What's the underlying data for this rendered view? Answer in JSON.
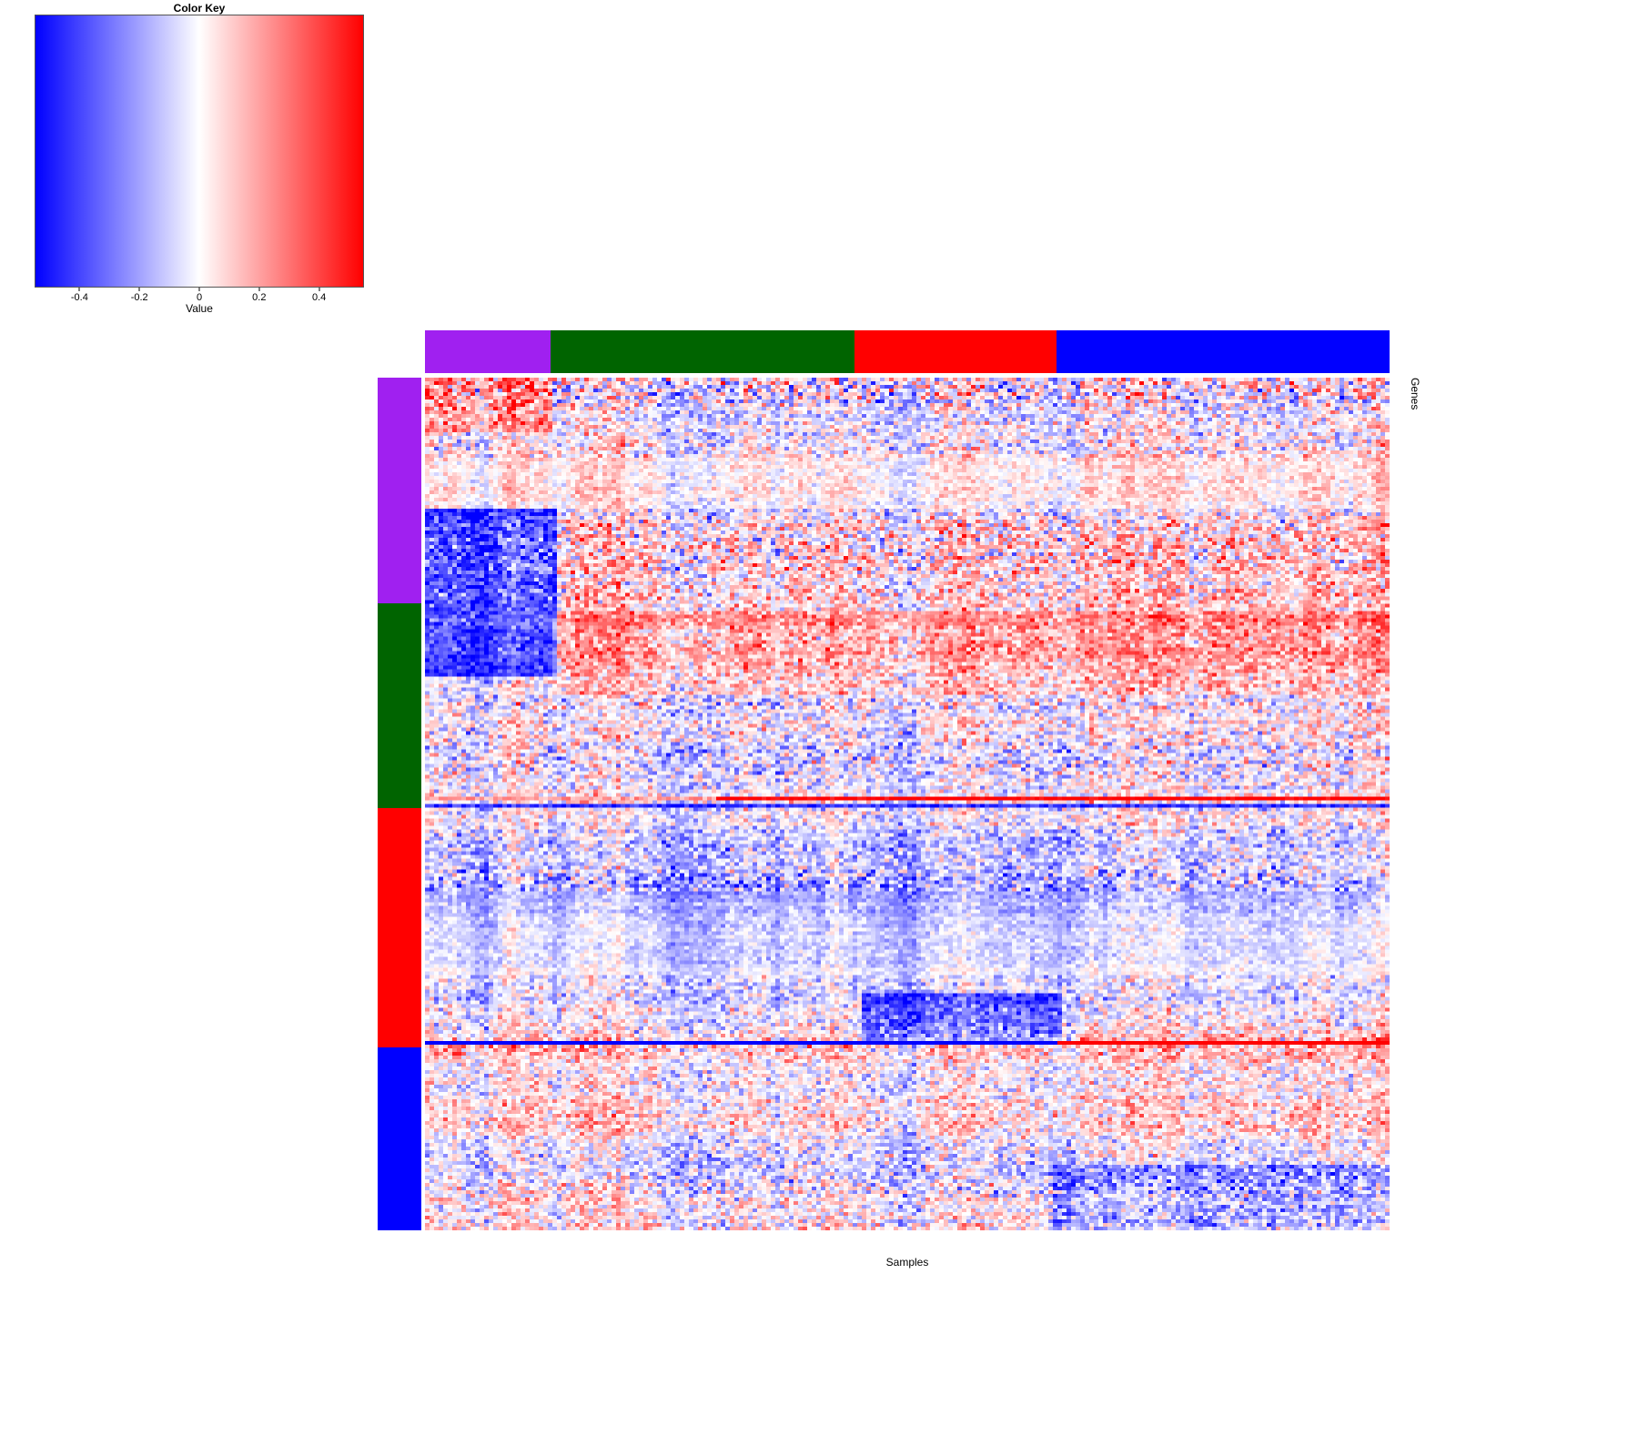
{
  "color_key": {
    "title": "Color Key",
    "axis_label": "Value",
    "tick_labels": [
      "-0.4",
      "-0.2",
      "0",
      "0.2",
      "0.4"
    ]
  },
  "x_axis_label": "Samples",
  "y_axis_label": "Genes",
  "chart_data": {
    "type": "heatmap",
    "title": "",
    "xlabel": "Samples",
    "ylabel": "Genes",
    "legend_title": "Color Key",
    "value_axis_label": "Value",
    "value_ticks": [
      -0.4,
      -0.2,
      0,
      0.2,
      0.4
    ],
    "value_range": [
      -0.55,
      0.55
    ],
    "colormap": {
      "low": "#0000FF",
      "mid": "#FFFFFF",
      "high": "#FF0000"
    },
    "grid": false,
    "n_rows": 234,
    "n_cols": 212,
    "seed": 1337,
    "col_groups": [
      {
        "name": "purple",
        "color": "#A020F0",
        "fraction": 0.13
      },
      {
        "name": "green",
        "color": "#006400",
        "fraction": 0.315
      },
      {
        "name": "red",
        "color": "#FF0000",
        "fraction": 0.21
      },
      {
        "name": "blue",
        "color": "#0000FF",
        "fraction": 0.345
      }
    ],
    "row_groups": [
      {
        "name": "purple",
        "color": "#A020F0",
        "fraction": 0.265
      },
      {
        "name": "green",
        "color": "#006400",
        "fraction": 0.24
      },
      {
        "name": "red",
        "color": "#FF0000",
        "fraction": 0.28
      },
      {
        "name": "blue",
        "color": "#0000FF",
        "fraction": 0.215
      }
    ],
    "blocks": [
      {
        "row_from": 0.15,
        "row_to": 0.35,
        "col_from": 0.0,
        "col_to": 0.135,
        "bias": -0.45,
        "var_scale": 0.8
      },
      {
        "row_from": 0.0,
        "row_to": 0.06,
        "col_from": 0.0,
        "col_to": 0.13,
        "bias": 0.25,
        "var_scale": 1.0
      },
      {
        "row_from": 0.09,
        "row_to": 0.15,
        "col_from": 0.0,
        "col_to": 1.0,
        "bias": 0.0,
        "var_scale": 0.55
      },
      {
        "row_from": 0.27,
        "row_to": 0.37,
        "col_from": 0.13,
        "col_to": 1.0,
        "bias": 0.15,
        "var_scale": 1.0
      },
      {
        "row_from": 0.6,
        "row_to": 0.7,
        "col_from": 0.0,
        "col_to": 1.0,
        "bias": 0.0,
        "var_scale": 0.45
      },
      {
        "row_from": 0.72,
        "row_to": 0.78,
        "col_from": 0.45,
        "col_to": 0.66,
        "bias": -0.3,
        "var_scale": 0.9
      },
      {
        "row_from": 0.92,
        "row_to": 1.0,
        "col_from": 0.65,
        "col_to": 1.0,
        "bias": -0.2,
        "var_scale": 1.0
      }
    ],
    "stripe_rows": [
      {
        "at": 0.493,
        "split": 0.3,
        "left_bias": 0.2,
        "right_bias": 0.6
      },
      {
        "at": 0.503,
        "split": 0.5,
        "left_bias": -0.45,
        "right_bias": -0.45
      },
      {
        "at": 0.78,
        "split": 0.655,
        "left_bias": -0.9,
        "right_bias": 0.95
      }
    ]
  }
}
